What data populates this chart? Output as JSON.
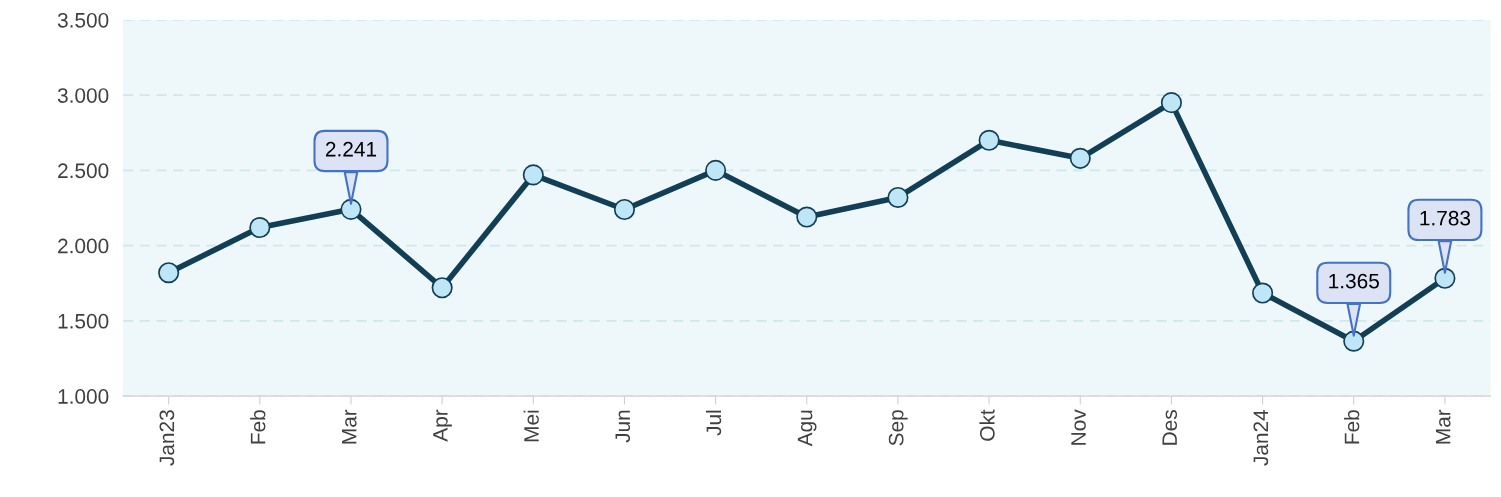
{
  "chart_data": {
    "type": "line",
    "categories": [
      "Jan23",
      "Feb",
      "Mar",
      "Apr",
      "Mei",
      "Jun",
      "Jul",
      "Agu",
      "Sep",
      "Okt",
      "Nov",
      "Des",
      "Jan24",
      "Feb",
      "Mar"
    ],
    "series": [
      {
        "color": "#123f55",
        "values": [
          1820,
          2120,
          2241,
          1720,
          2470,
          2240,
          2500,
          2190,
          2320,
          2700,
          2580,
          2950,
          1685,
          1365,
          1783
        ],
        "value_labels": [
          null,
          null,
          "2.241",
          null,
          null,
          null,
          null,
          null,
          null,
          null,
          null,
          null,
          null,
          "1.365",
          "1.783"
        ]
      }
    ],
    "ylim": [
      1000,
      3500
    ],
    "yticks": [
      {
        "value": 1000,
        "label": "1.000"
      },
      {
        "value": 1500,
        "label": "1.500"
      },
      {
        "value": 2000,
        "label": "2.000"
      },
      {
        "value": 2500,
        "label": "2.500"
      },
      {
        "value": 3000,
        "label": "3.000"
      },
      {
        "value": 3500,
        "label": "3.500"
      }
    ],
    "grid": "y",
    "marker": "circle",
    "line_style": "solid"
  }
}
